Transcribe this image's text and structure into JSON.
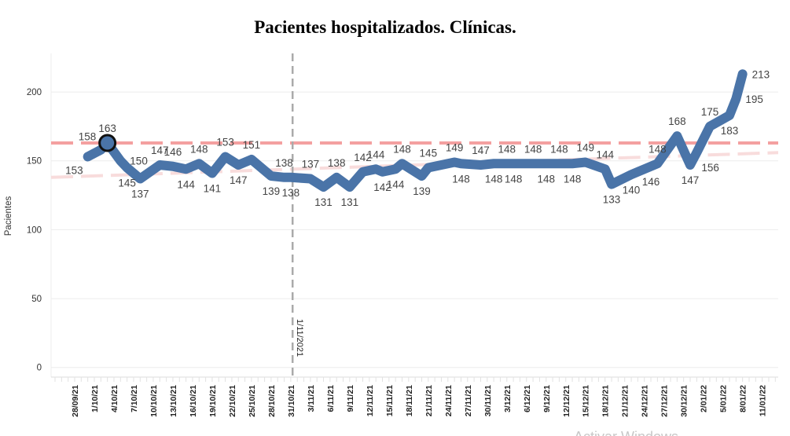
{
  "chart_data": {
    "type": "line",
    "title": "Pacientes hospitalizados. Clínicas.",
    "xlabel": "",
    "ylabel": "Pacientes",
    "ylim": [
      -7,
      228
    ],
    "yticks": [
      0,
      50,
      100,
      150,
      200
    ],
    "grid": true,
    "x_tick_labels": [
      "28/09/21",
      "1/10/21",
      "4/10/21",
      "7/10/21",
      "10/10/21",
      "13/10/21",
      "16/10/21",
      "19/10/21",
      "22/10/21",
      "25/10/21",
      "28/10/21",
      "31/10/21",
      "3/11/21",
      "6/11/21",
      "9/11/21",
      "12/11/21",
      "15/11/21",
      "18/11/21",
      "21/11/21",
      "24/11/21",
      "27/11/21",
      "30/11/21",
      "3/12/21",
      "6/12/21",
      "9/12/21",
      "12/12/21",
      "15/12/21",
      "18/12/21",
      "21/12/21",
      "24/12/21",
      "27/12/21",
      "30/12/21",
      "2/01/22",
      "5/01/22",
      "8/01/22",
      "11/01/22"
    ],
    "series": [
      {
        "color": "#4a74a8",
        "points": [
          {
            "x": "30/09/21",
            "y": 153,
            "pos": "below-left"
          },
          {
            "x": "2/10/21",
            "y": 158,
            "pos": "above-left"
          },
          {
            "x": "3/10/21",
            "y": 163,
            "pos": "above",
            "highlight": true
          },
          {
            "x": "5/10/21",
            "y": 150,
            "pos": "right"
          },
          {
            "x": "6/10/21",
            "y": 145,
            "pos": "below"
          },
          {
            "x": "8/10/21",
            "y": 137,
            "pos": "below"
          },
          {
            "x": "11/10/21",
            "y": 147,
            "pos": "above"
          },
          {
            "x": "13/10/21",
            "y": 146,
            "pos": "above"
          },
          {
            "x": "15/10/21",
            "y": 144,
            "pos": "below"
          },
          {
            "x": "17/10/21",
            "y": 148,
            "pos": "above"
          },
          {
            "x": "19/10/21",
            "y": 141,
            "pos": "below"
          },
          {
            "x": "21/10/21",
            "y": 153,
            "pos": "above"
          },
          {
            "x": "23/10/21",
            "y": 147,
            "pos": "below"
          },
          {
            "x": "25/10/21",
            "y": 151,
            "pos": "above"
          },
          {
            "x": "28/10/21",
            "y": 139,
            "pos": "below"
          },
          {
            "x": "30/10/21",
            "y": 138,
            "pos": "above"
          },
          {
            "x": "31/10/21",
            "y": 138,
            "pos": "below"
          },
          {
            "x": "3/11/21",
            "y": 137,
            "pos": "above"
          },
          {
            "x": "5/11/21",
            "y": 131,
            "pos": "below"
          },
          {
            "x": "7/11/21",
            "y": 138,
            "pos": "above"
          },
          {
            "x": "9/11/21",
            "y": 131,
            "pos": "below"
          },
          {
            "x": "11/11/21",
            "y": 142,
            "pos": "above"
          },
          {
            "x": "13/11/21",
            "y": 144,
            "pos": "above"
          },
          {
            "x": "14/11/21",
            "y": 142,
            "pos": "below"
          },
          {
            "x": "16/11/21",
            "y": 144,
            "pos": "below"
          },
          {
            "x": "17/11/21",
            "y": 148,
            "pos": "above"
          },
          {
            "x": "20/11/21",
            "y": 139,
            "pos": "below"
          },
          {
            "x": "21/11/21",
            "y": 145,
            "pos": "above"
          },
          {
            "x": "25/11/21",
            "y": 149,
            "pos": "above"
          },
          {
            "x": "26/11/21",
            "y": 148,
            "pos": "below"
          },
          {
            "x": "29/11/21",
            "y": 147,
            "pos": "above"
          },
          {
            "x": "1/12/21",
            "y": 148,
            "pos": "below"
          },
          {
            "x": "3/12/21",
            "y": 148,
            "pos": "above"
          },
          {
            "x": "4/12/21",
            "y": 148,
            "pos": "below"
          },
          {
            "x": "7/12/21",
            "y": 148,
            "pos": "above"
          },
          {
            "x": "9/12/21",
            "y": 148,
            "pos": "below"
          },
          {
            "x": "11/12/21",
            "y": 148,
            "pos": "above"
          },
          {
            "x": "13/12/21",
            "y": 148,
            "pos": "below"
          },
          {
            "x": "15/12/21",
            "y": 149,
            "pos": "above"
          },
          {
            "x": "18/12/21",
            "y": 144,
            "pos": "above"
          },
          {
            "x": "19/12/21",
            "y": 133,
            "pos": "below"
          },
          {
            "x": "22/12/21",
            "y": 140,
            "pos": "below"
          },
          {
            "x": "25/12/21",
            "y": 146,
            "pos": "below"
          },
          {
            "x": "26/12/21",
            "y": 148,
            "pos": "above"
          },
          {
            "x": "29/12/21",
            "y": 168,
            "pos": "above"
          },
          {
            "x": "31/12/21",
            "y": 147,
            "pos": "below"
          },
          {
            "x": "1/01/22",
            "y": 156,
            "pos": "below-right"
          },
          {
            "x": "3/01/22",
            "y": 175,
            "pos": "above"
          },
          {
            "x": "6/01/22",
            "y": 183,
            "pos": "below"
          },
          {
            "x": "7/01/22",
            "y": 195,
            "pos": "right"
          },
          {
            "x": "8/01/22",
            "y": 213,
            "pos": "right"
          }
        ]
      }
    ],
    "reference_lines": [
      {
        "type": "horizontal",
        "y": 163,
        "color": "#f4a0a0",
        "style": "dashed"
      },
      {
        "type": "trend",
        "from": {
          "x": "28/09/21",
          "y": 138
        },
        "to": {
          "x": "11/01/22",
          "y": 156
        },
        "color": "#f8dcdc",
        "style": "dashed"
      },
      {
        "type": "vertical",
        "x": "1/11/21",
        "label": "1/11/2021",
        "color": "#aaaaaa",
        "style": "dashed"
      }
    ]
  },
  "watermark": "Activar Windows"
}
